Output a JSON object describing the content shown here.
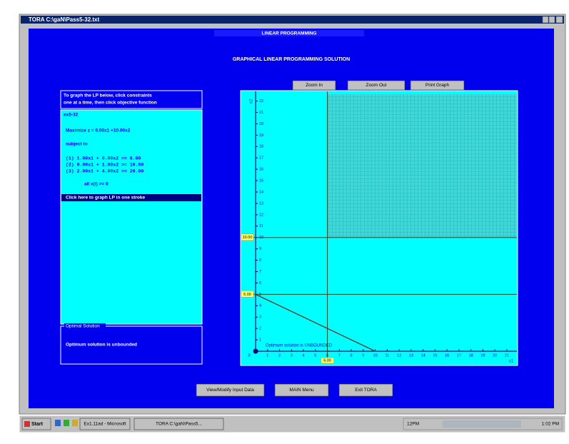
{
  "window": {
    "title": "TORA C:\\gaN\\Pass5-32.txt"
  },
  "app_title": "LINEAR PROGRAMMING",
  "heading": "GRAPHICAL LINEAR PROGRAMMING SOLUTION",
  "instructions": [
    "To graph the LP below, click constraints",
    "one at a time, then click objective function"
  ],
  "model": {
    "name": "ex5-32",
    "objective": "Maximize z = 0.00x1 +10.00x2",
    "subject_to": "subject to",
    "constraints": [
      "(1)  1.00x1 +  0.00x2 >=   6.00",
      "(2)  0.00x1 +  1.00x2 >=  10.00",
      "(3)  2.00x1 +  4.00x2 >=  20.00"
    ],
    "nonnegativity": "all x(i) >= 0"
  },
  "graph_all": "Click here to graph LP in one stroke",
  "optimal": {
    "title": "Optimal Solution",
    "text": "Optimum solution is unbounded"
  },
  "graph_controls": [
    "Zoom In",
    "Zoom Out",
    "Print Graph"
  ],
  "graph": {
    "x_label": "x1",
    "y_label": "x2",
    "xlim": [
      0,
      21.6
    ],
    "ylim": [
      0,
      22.6
    ],
    "xticks": [
      0,
      1,
      2,
      3,
      4,
      5,
      6,
      7,
      8,
      9,
      10,
      11,
      12,
      13,
      14,
      15,
      16,
      17,
      18,
      19,
      20,
      21
    ],
    "yticks": [
      1,
      2,
      3,
      4,
      5,
      6,
      7,
      8,
      9,
      10,
      11,
      12,
      13,
      14,
      15,
      16,
      17,
      18,
      19,
      20,
      21,
      22
    ],
    "markers": [
      {
        "axis": "y",
        "value": 10,
        "label": "10.00"
      },
      {
        "axis": "y",
        "value": 5,
        "label": "5.00"
      },
      {
        "axis": "x",
        "value": 6,
        "label": "6.00"
      }
    ],
    "segment": {
      "x": [
        0,
        10
      ],
      "y": [
        5,
        0
      ]
    },
    "note": "Optimum solution is UNBOUNDED"
  },
  "buttons": [
    "View/Modify Input Data",
    "MAIN Menu",
    "Exit TORA"
  ],
  "taskbar": {
    "start": "Start",
    "items": [
      "Ex1.11ad - Microsoft",
      "TORA C:\\gaN\\Pass5..."
    ],
    "status": "12PM",
    "clock": "1:02 PM"
  }
}
